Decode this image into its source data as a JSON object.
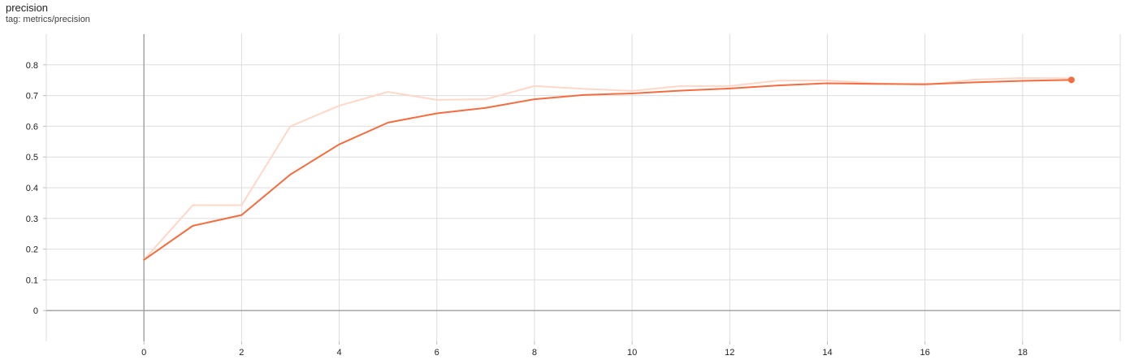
{
  "card": {
    "title": "precision",
    "tag": "tag: metrics/precision"
  },
  "colors": {
    "smoothed": "#f26d3f",
    "raw": "#ffd7c8",
    "grid": "#dddddd",
    "axis": "#9e9e9e"
  },
  "chart_data": {
    "type": "line",
    "title": "precision",
    "xlabel": "",
    "ylabel": "",
    "xlim": [
      -2,
      20
    ],
    "ylim": [
      -0.1,
      0.9
    ],
    "x_ticks": [
      0,
      2,
      4,
      6,
      8,
      10,
      12,
      14,
      16,
      18
    ],
    "y_ticks": [
      0,
      0.1,
      0.2,
      0.3,
      0.4,
      0.5,
      0.6,
      0.7,
      0.8
    ],
    "y_tick_labels": [
      "0",
      "0.1",
      "0.2",
      "0.3",
      "0.4",
      "0.5",
      "0.6",
      "0.7",
      "0.8"
    ],
    "grid": true,
    "x": [
      0,
      1,
      2,
      3,
      4,
      5,
      6,
      7,
      8,
      9,
      10,
      11,
      12,
      13,
      14,
      15,
      16,
      17,
      18,
      19
    ],
    "series": [
      {
        "role": "raw",
        "values": [
          0.165,
          0.343,
          0.343,
          0.6,
          0.667,
          0.712,
          0.686,
          0.688,
          0.731,
          0.722,
          0.715,
          0.731,
          0.731,
          0.749,
          0.749,
          0.74,
          0.735,
          0.752,
          0.757,
          0.756
        ]
      },
      {
        "role": "smoothed",
        "values": [
          0.165,
          0.276,
          0.311,
          0.443,
          0.541,
          0.612,
          0.642,
          0.66,
          0.688,
          0.702,
          0.707,
          0.716,
          0.723,
          0.733,
          0.74,
          0.738,
          0.737,
          0.743,
          0.748,
          0.751
        ]
      }
    ]
  }
}
